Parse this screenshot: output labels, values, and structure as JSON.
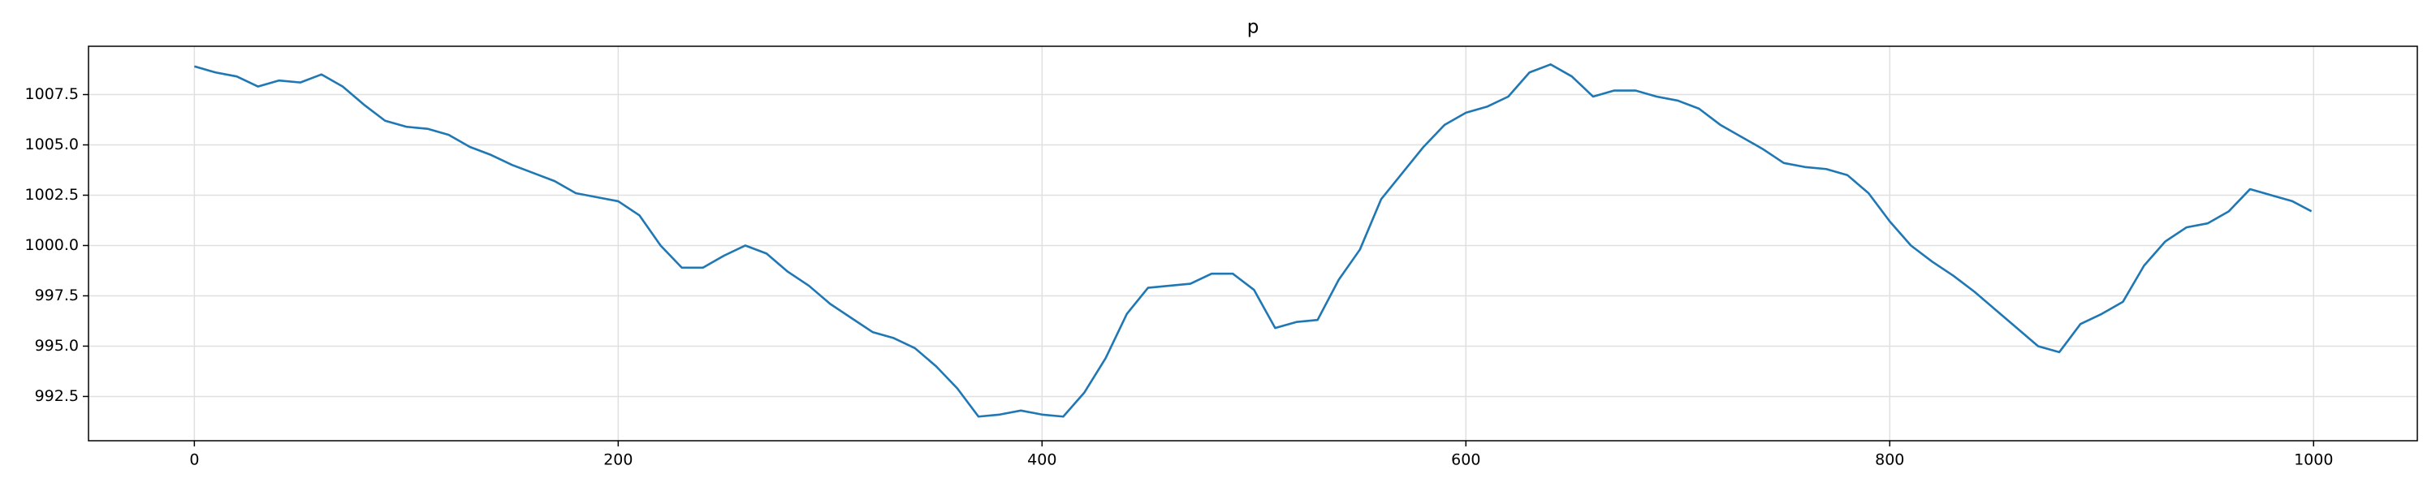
{
  "chart_data": {
    "type": "line",
    "title": "p",
    "x": [
      0,
      10,
      20,
      30,
      40,
      50,
      60,
      70,
      80,
      90,
      100,
      110,
      120,
      130,
      140,
      150,
      160,
      170,
      180,
      190,
      200,
      210,
      220,
      230,
      240,
      250,
      260,
      270,
      280,
      290,
      300,
      310,
      320,
      330,
      340,
      350,
      360,
      370,
      380,
      390,
      400,
      410,
      420,
      430,
      440,
      450,
      460,
      470,
      480,
      490,
      500,
      510,
      520,
      530,
      540,
      550,
      560,
      570,
      580,
      590,
      600,
      610,
      620,
      630,
      640,
      650,
      660,
      670,
      680,
      690,
      700,
      710,
      720,
      730,
      740,
      750,
      760,
      770,
      780,
      790,
      800,
      810,
      820,
      830,
      840,
      850,
      860,
      870,
      880,
      890,
      900,
      910,
      920,
      930,
      940,
      950,
      960,
      970,
      980,
      990,
      999
    ],
    "values": [
      1008.9,
      1008.6,
      1008.4,
      1007.9,
      1008.2,
      1008.1,
      1008.5,
      1007.9,
      1007.0,
      1006.2,
      1005.9,
      1005.8,
      1005.5,
      1004.9,
      1004.5,
      1004.0,
      1003.6,
      1003.2,
      1002.6,
      1002.4,
      1002.2,
      1001.5,
      1000.0,
      998.9,
      998.9,
      999.5,
      1000.0,
      999.6,
      998.7,
      998.0,
      997.1,
      996.4,
      995.7,
      995.4,
      994.9,
      994.0,
      992.9,
      991.5,
      991.6,
      991.8,
      991.6,
      991.5,
      992.7,
      994.4,
      996.6,
      997.9,
      998.0,
      998.1,
      998.6,
      998.6,
      997.8,
      995.9,
      996.2,
      996.3,
      998.3,
      999.8,
      1002.3,
      1003.6,
      1004.9,
      1006.0,
      1006.6,
      1006.9,
      1007.4,
      1008.6,
      1009.0,
      1008.4,
      1007.4,
      1007.7,
      1007.7,
      1007.4,
      1007.2,
      1006.8,
      1006.0,
      1005.4,
      1004.8,
      1004.1,
      1003.9,
      1003.8,
      1003.5,
      1002.6,
      1001.2,
      1000.0,
      999.2,
      998.5,
      997.7,
      996.8,
      995.9,
      995.0,
      994.7,
      996.1,
      996.6,
      997.2,
      999.0,
      1000.2,
      1000.9,
      1001.1,
      1001.7,
      1002.8,
      1002.5,
      1002.2,
      1001.7
    ],
    "color": "#1f77b4",
    "xlim": [
      -49.95,
      1048.95
    ],
    "xticks": [
      0,
      200,
      400,
      600,
      800,
      1000
    ],
    "ylim": [
      990.3,
      1009.9
    ],
    "yticks": [
      992.5,
      {
        "value": 995,
        "label": "995.0"
      },
      997.5,
      {
        "value": 1000,
        "label": "1000.0"
      },
      1002.5,
      {
        "value": 1005,
        "label": "1005.0"
      },
      1007.5
    ],
    "grid": true
  }
}
